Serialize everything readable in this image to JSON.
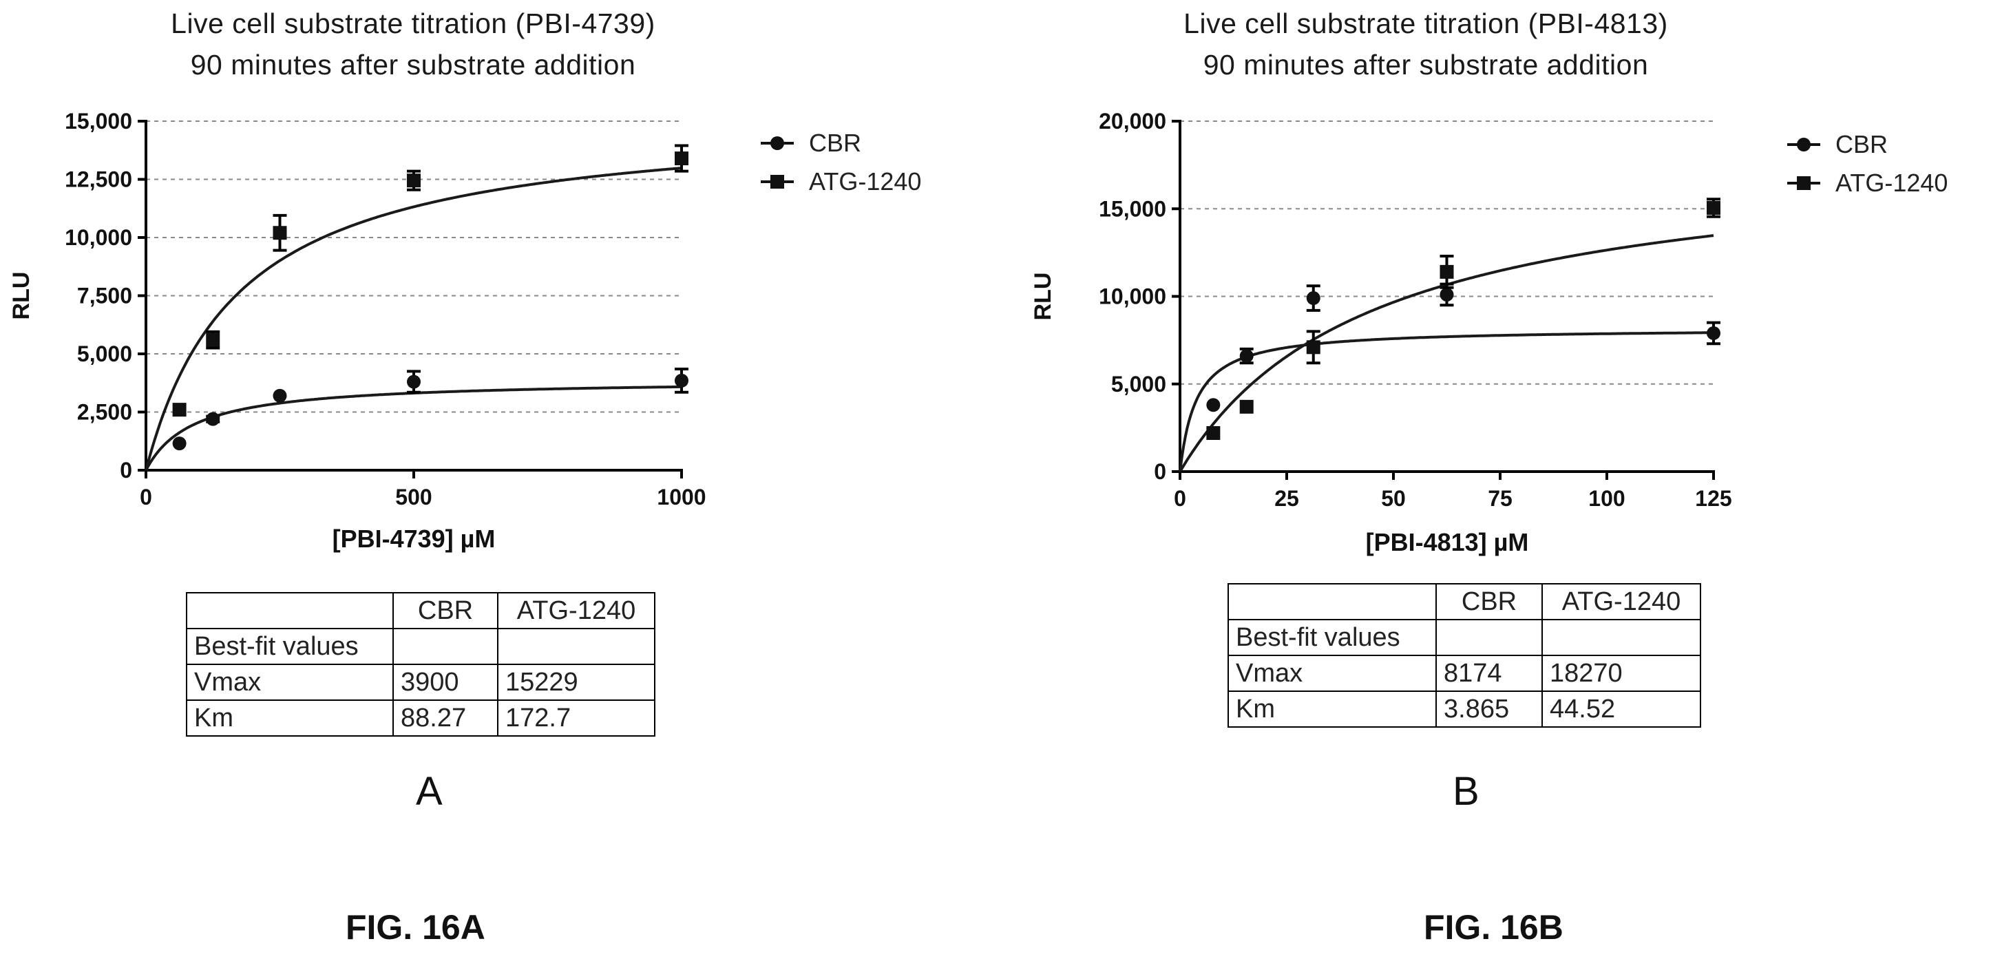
{
  "panels": [
    {
      "letter": "A",
      "figure_label": "FIG. 16A",
      "title_line1": "Live cell substrate titration (PBI-4739)",
      "title_line2": "90 minutes after substrate addition",
      "table": {
        "header": [
          "",
          "CBR",
          "ATG-1240"
        ],
        "rows": [
          [
            "Best-fit values",
            "",
            ""
          ],
          [
            "Vmax",
            "3900",
            "15229"
          ],
          [
            "Km",
            "88.27",
            "172.7"
          ]
        ]
      }
    },
    {
      "letter": "B",
      "figure_label": "FIG. 16B",
      "title_line1": "Live cell substrate titration (PBI-4813)",
      "title_line2": "90 minutes after substrate addition",
      "table": {
        "header": [
          "",
          "CBR",
          "ATG-1240"
        ],
        "rows": [
          [
            "Best-fit values",
            "",
            ""
          ],
          [
            "Vmax",
            "8174",
            "18270"
          ],
          [
            "Km",
            "3.865",
            "44.52"
          ]
        ]
      }
    }
  ],
  "chart_data": [
    {
      "type": "scatter",
      "title": "Live cell substrate titration (PBI-4739) 90 minutes after substrate addition",
      "xlabel": "[PBI-4739] µM",
      "ylabel": "RLU",
      "xlim": [
        0,
        1000
      ],
      "ylim": [
        0,
        15000
      ],
      "x_ticks": [
        0,
        500,
        1000
      ],
      "x_tick_labels": [
        "0",
        "500",
        "1000"
      ],
      "y_ticks": [
        0,
        2500,
        5000,
        7500,
        10000,
        12500,
        15000
      ],
      "y_tick_labels": [
        "0",
        "2,500",
        "5,000",
        "7,500",
        "10,000",
        "12,500",
        "15,000"
      ],
      "grid": "horizontal dashed",
      "legend_position": "right",
      "fit": "Michaelis-Menten",
      "series": [
        {
          "name": "CBR",
          "marker": "circle",
          "x": [
            62.5,
            125,
            250,
            500,
            1000
          ],
          "y": [
            1150,
            2200,
            3200,
            3800,
            3850
          ],
          "err": [
            0,
            120,
            0,
            450,
            500
          ],
          "vmax": 3900,
          "km": 88.27
        },
        {
          "name": "ATG-1240",
          "marker": "square",
          "x": [
            62.5,
            125,
            250,
            500,
            1000
          ],
          "y": [
            2600,
            5600,
            10200,
            12450,
            13400
          ],
          "err": [
            0,
            350,
            750,
            400,
            550
          ],
          "vmax": 15229,
          "km": 172.7
        }
      ]
    },
    {
      "type": "scatter",
      "title": "Live cell substrate titration (PBI-4813) 90 minutes after substrate addition",
      "xlabel": "[PBI-4813] µM",
      "ylabel": "RLU",
      "xlim": [
        0,
        125
      ],
      "ylim": [
        0,
        20000
      ],
      "x_ticks": [
        0,
        25,
        50,
        75,
        100,
        125
      ],
      "x_tick_labels": [
        "0",
        "25",
        "50",
        "75",
        "100",
        "125"
      ],
      "y_ticks": [
        0,
        5000,
        10000,
        15000,
        20000
      ],
      "y_tick_labels": [
        "0",
        "5,000",
        "10,000",
        "15,000",
        "20,000"
      ],
      "grid": "horizontal dashed",
      "legend_position": "right",
      "fit": "Michaelis-Menten",
      "series": [
        {
          "name": "CBR",
          "marker": "circle",
          "x": [
            7.8,
            15.6,
            31.25,
            62.5,
            125
          ],
          "y": [
            3800,
            6600,
            9900,
            10100,
            7900
          ],
          "err": [
            0,
            400,
            700,
            600,
            600
          ],
          "vmax": 8174,
          "km": 3.865
        },
        {
          "name": "ATG-1240",
          "marker": "square",
          "x": [
            7.8,
            15.6,
            31.25,
            62.5,
            125
          ],
          "y": [
            2200,
            3700,
            7100,
            11400,
            15050
          ],
          "err": [
            0,
            0,
            900,
            900,
            500
          ],
          "vmax": 18270,
          "km": 44.52
        }
      ]
    }
  ]
}
